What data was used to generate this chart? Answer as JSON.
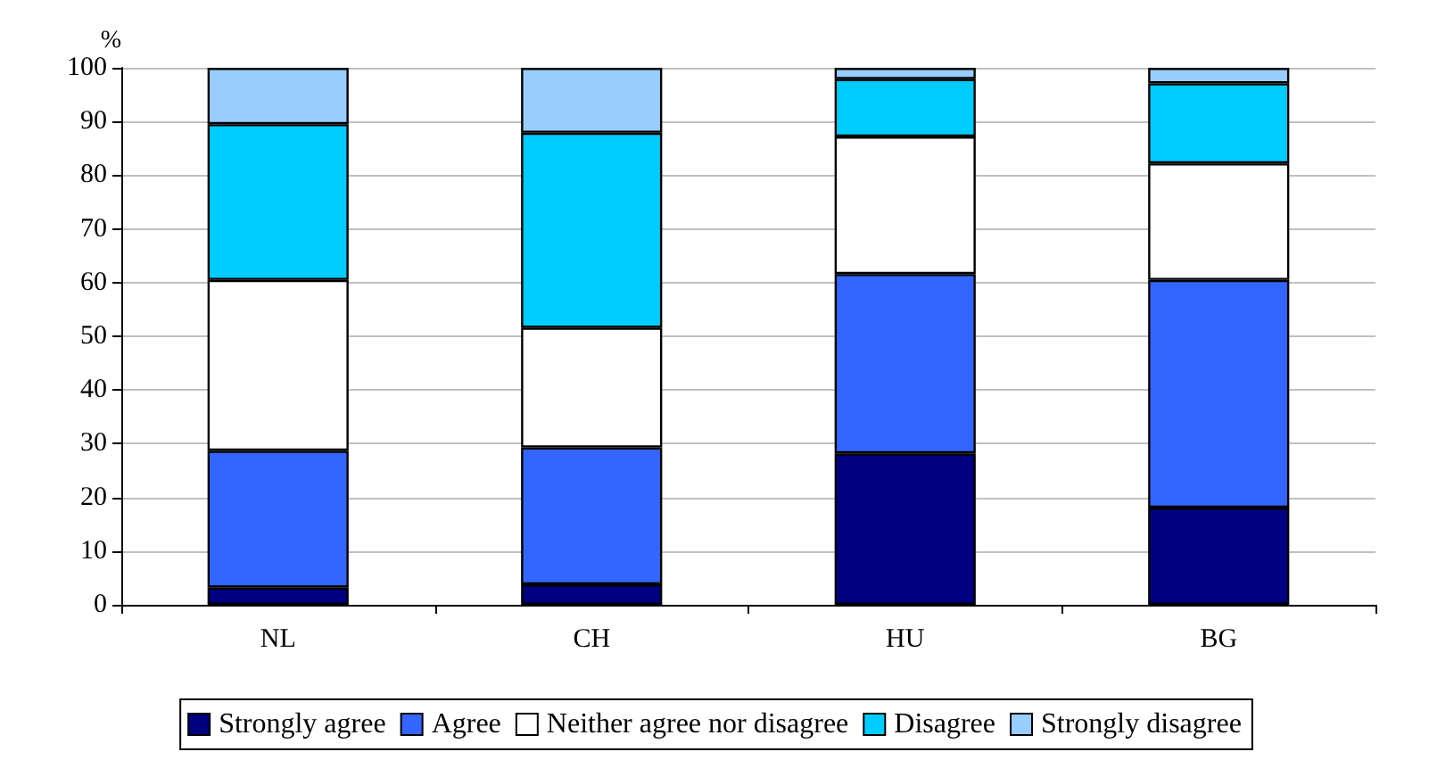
{
  "chart_data": {
    "type": "bar",
    "stacked": true,
    "ylabel": "%",
    "categories": [
      "NL",
      "CH",
      "HU",
      "BG"
    ],
    "series": [
      {
        "name": "Strongly agree",
        "color": "#000080",
        "values": [
          3.2,
          3.8,
          28.2,
          18.1
        ]
      },
      {
        "name": "Agree",
        "color": "#3366ff",
        "values": [
          25.5,
          25.5,
          33.4,
          42.4
        ]
      },
      {
        "name": "Neither agree nor disagree",
        "color": "#ffffff",
        "values": [
          31.8,
          22.3,
          25.6,
          21.7
        ]
      },
      {
        "name": "Disagree",
        "color": "#00ccff",
        "values": [
          29.0,
          36.3,
          10.7,
          14.9
        ]
      },
      {
        "name": "Strongly disagree",
        "color": "#99ccff",
        "values": [
          10.5,
          12.1,
          2.1,
          2.9
        ]
      }
    ],
    "ylim": [
      0,
      100
    ],
    "yticks": [
      0,
      10,
      20,
      30,
      40,
      50,
      60,
      70,
      80,
      90,
      100
    ],
    "grid": "y",
    "legend": "bottom"
  }
}
